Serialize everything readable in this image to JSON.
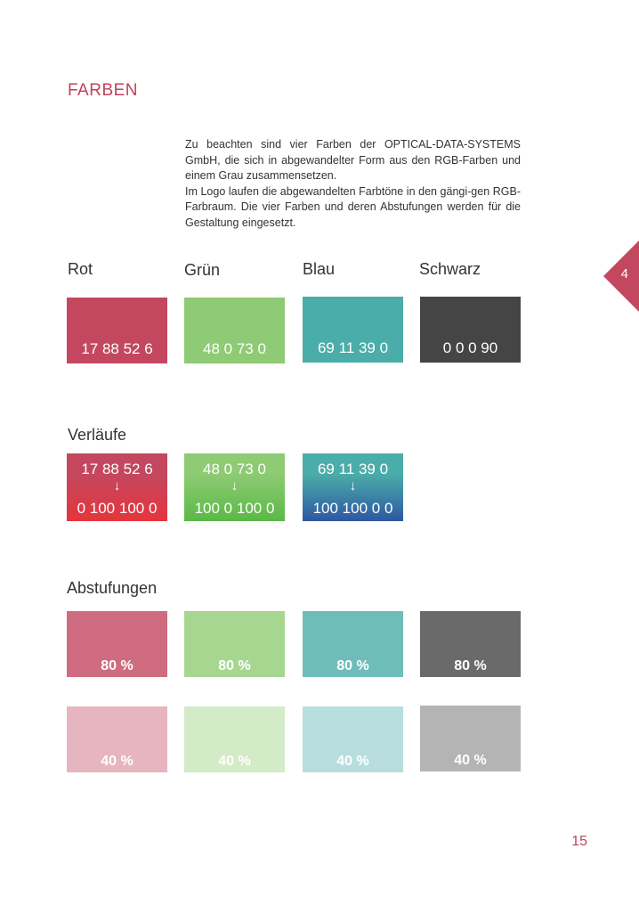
{
  "page": {
    "title": "FARBEN",
    "intro_paragraphs": [
      "Zu beachten sind vier Farben der OPTICAL-DATA-SYSTEMS GmbH, die sich in abgewandelter Form aus den RGB-Farben und einem Grau zusammensetzen.",
      "Im Logo laufen die abgewandelten Farbtöne in den gängi-gen RGB-Farbraum. Die vier Farben und deren Abstufungen werden für die Gestaltung eingesetzt."
    ],
    "chapter_tab": "4",
    "page_number": "15"
  },
  "colors": [
    {
      "label": "Rot",
      "code": "17 88 52 6",
      "hex": "#c3485f"
    },
    {
      "label": "Grün",
      "code": "48  0 73  0",
      "hex": "#8ecb74"
    },
    {
      "label": "Blau",
      "code": "69 11 39 0",
      "hex": "#4bada9"
    },
    {
      "label": "Schwarz",
      "code": "0  0  0  90",
      "hex": "#454545"
    }
  ],
  "gradients": {
    "label": "Verläufe",
    "arrow": "↓",
    "items": [
      {
        "from": "17 88 52 6",
        "to": "0 100 100 0",
        "color_top": "#c3485f",
        "color_bottom": "#e6343d"
      },
      {
        "from": "48  0 73  0",
        "to": "100 0 100 0",
        "color_top": "#8ecb74",
        "color_bottom": "#5ab946"
      },
      {
        "from": "69 11 39 0",
        "to": "100 100 0 0",
        "color_top": "#4bada9",
        "color_bottom": "#2e57a2"
      }
    ]
  },
  "tints": {
    "label": "Abstufungen",
    "rows": [
      {
        "percent_label": "80 %",
        "colors": [
          "#cf6c7f",
          "#a6d690",
          "#6fbdb9",
          "#6a6a6a"
        ]
      },
      {
        "percent_label": "40 %",
        "colors": [
          "#e7b5bf",
          "#d3ebc7",
          "#b7dedc",
          "#b4b4b4"
        ]
      }
    ]
  },
  "accent_color": "#c2405c"
}
